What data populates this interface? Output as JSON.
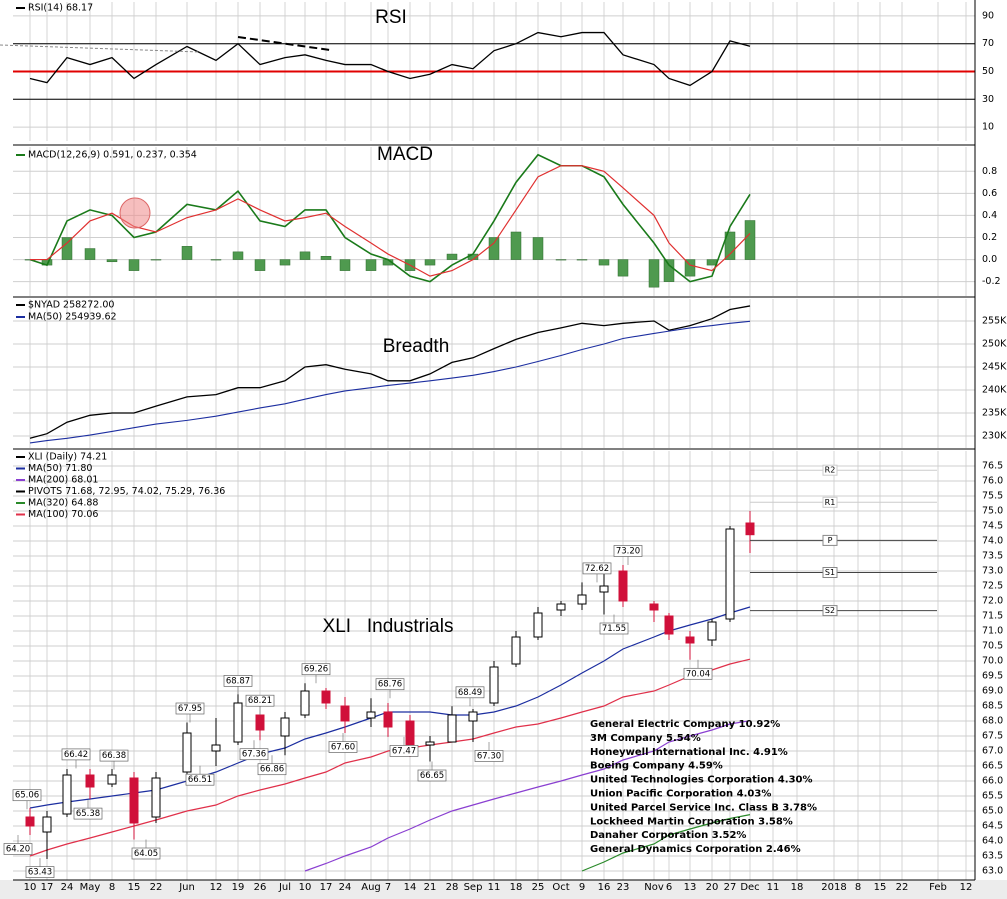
{
  "chart_data": [
    {
      "type": "line",
      "title": "RSI",
      "ylim": [
        0,
        100
      ],
      "yticks": [
        10,
        30,
        50,
        70,
        90
      ],
      "reference_lines": [
        {
          "value": 70,
          "color": "#000000"
        },
        {
          "value": 30,
          "color": "#000000"
        },
        {
          "value": 50,
          "color": "#e00000"
        }
      ],
      "series": [
        {
          "name": "RSI(14) 68.17",
          "color": "#000000",
          "values": [
            45,
            42,
            60,
            55,
            60,
            45,
            55,
            68,
            58,
            70,
            55,
            60,
            62,
            58,
            55,
            55,
            50,
            45,
            48,
            55,
            52,
            65,
            70,
            78,
            75,
            78,
            78,
            62,
            55,
            45,
            40,
            50,
            72,
            68.17,
            null,
            null,
            null,
            null,
            null,
            null,
            null,
            null
          ]
        }
      ]
    },
    {
      "type": "macd",
      "title": "MACD",
      "ylim": [
        -0.33,
        1.02
      ],
      "yticks": [
        -0.2,
        {
          "value": 0,
          "label": "0.0"
        },
        0.2,
        0.4,
        0.6,
        0.8
      ],
      "series": [
        {
          "name": "MACD(12,26,9) 0.591, 0.237, 0.354",
          "color": "#1a7a1a",
          "values": [
            0.0,
            -0.05,
            0.35,
            0.45,
            0.4,
            0.2,
            0.25,
            0.5,
            0.45,
            0.62,
            0.35,
            0.3,
            0.45,
            0.45,
            0.2,
            0.05,
            0.0,
            -0.15,
            -0.2,
            -0.05,
            0.05,
            0.35,
            0.7,
            0.95,
            0.85,
            0.85,
            0.75,
            0.5,
            0.15,
            -0.05,
            -0.2,
            -0.15,
            0.3,
            0.591,
            null,
            null,
            null,
            null,
            null,
            null,
            null,
            null
          ]
        },
        {
          "color": "#e03030",
          "values": [
            0.0,
            0.0,
            0.15,
            0.35,
            0.42,
            0.3,
            0.25,
            0.38,
            0.45,
            0.55,
            0.45,
            0.35,
            0.38,
            0.42,
            0.3,
            0.15,
            0.05,
            -0.05,
            -0.15,
            -0.1,
            0.0,
            0.15,
            0.45,
            0.75,
            0.85,
            0.85,
            0.8,
            0.65,
            0.4,
            0.15,
            -0.05,
            -0.1,
            0.05,
            0.237,
            null,
            null,
            null,
            null,
            null,
            null,
            null,
            null
          ]
        },
        {
          "kind": "bar",
          "color": "#4f9a4f",
          "values": [
            0,
            -0.05,
            0.2,
            0.1,
            -0.02,
            -0.1,
            0,
            0.12,
            0,
            0.07,
            -0.1,
            -0.05,
            0.07,
            0.03,
            -0.1,
            -0.1,
            -0.05,
            -0.1,
            -0.05,
            0.05,
            0.05,
            0.2,
            0.25,
            0.2,
            0,
            0,
            -0.05,
            -0.15,
            -0.25,
            -0.2,
            -0.15,
            -0.05,
            0.25,
            0.354,
            null,
            null,
            null,
            null,
            null,
            null,
            null,
            null
          ]
        }
      ]
    },
    {
      "type": "line",
      "title": "Breadth",
      "ylim": [
        227391,
        259783
      ],
      "yticks": [
        {
          "value": 230000,
          "label": "230K"
        },
        {
          "value": 235000,
          "label": "235K"
        },
        {
          "value": 240000,
          "label": "240K"
        },
        {
          "value": 245000,
          "label": "245K"
        },
        {
          "value": 250000,
          "label": "250K"
        },
        {
          "value": 255000,
          "label": "255K"
        }
      ],
      "series": [
        {
          "name": "$NYAD 258272.00",
          "color": "#000000",
          "values": [
            229500,
            230500,
            233000,
            234500,
            235000,
            235000,
            236500,
            238500,
            239000,
            240500,
            240500,
            242000,
            245000,
            245500,
            244500,
            243500,
            242000,
            242000,
            243500,
            246000,
            247000,
            249000,
            251000,
            252500,
            253500,
            254500,
            254000,
            254500,
            255000,
            253000,
            254000,
            255500,
            257500,
            258272,
            null,
            null,
            null,
            null,
            null,
            null,
            null,
            null
          ]
        },
        {
          "name": "MA(50) 254939.62",
          "color": "#1c2ea0",
          "values": [
            228500,
            229000,
            229500,
            230200,
            231000,
            231800,
            232600,
            233400,
            234300,
            235200,
            236100,
            237000,
            238000,
            239000,
            239800,
            240500,
            241000,
            241500,
            242000,
            242600,
            243200,
            244000,
            245000,
            246200,
            247500,
            248800,
            250000,
            251200,
            252300,
            252800,
            253500,
            254000,
            254500,
            254939.62,
            null,
            null,
            null,
            null,
            null,
            null,
            null,
            null
          ]
        }
      ]
    },
    {
      "type": "candlestick",
      "title": "XLI   Industrials",
      "name": "XLI (Daily) 74.21",
      "up_color": "#000000",
      "down_color": "#d0103a",
      "categories": [
        "10",
        "17",
        "24",
        "May",
        "8",
        "15",
        "22",
        "Jun",
        "12",
        "19",
        "26",
        "Jul",
        "10",
        "17",
        "24",
        "Aug",
        "7",
        "14",
        "21",
        "28",
        "Sep",
        "11",
        "18",
        "25",
        "Oct",
        "9",
        "16",
        "23",
        "Nov",
        "6",
        "13",
        "20",
        "27",
        "Dec",
        "11",
        "18",
        "2018",
        "8",
        "15",
        "22",
        "Feb",
        "12"
      ],
      "open": [
        64.8,
        64.3,
        64.9,
        66.2,
        65.9,
        66.1,
        64.8,
        66.3,
        67.0,
        67.3,
        68.2,
        67.5,
        68.2,
        69.0,
        68.5,
        68.1,
        68.3,
        68.0,
        67.2,
        67.3,
        68.0,
        68.6,
        69.9,
        70.8,
        71.7,
        71.9,
        72.3,
        73.0,
        71.9,
        71.5,
        70.8,
        70.7,
        71.4,
        74.6,
        null,
        null,
        null,
        null,
        null,
        null,
        null,
        null
      ],
      "high": [
        65.1,
        65.0,
        66.4,
        66.4,
        66.4,
        66.3,
        66.3,
        67.95,
        68.1,
        68.9,
        68.2,
        68.3,
        69.26,
        69.1,
        68.8,
        68.76,
        68.6,
        68.2,
        67.5,
        68.49,
        68.4,
        70.0,
        71.0,
        71.8,
        72.0,
        72.62,
        73.2,
        73.2,
        72.0,
        71.6,
        71.0,
        71.4,
        74.5,
        75.0,
        null,
        null,
        null,
        null,
        null,
        null,
        null,
        null
      ],
      "low": [
        64.2,
        63.4,
        64.8,
        65.4,
        65.8,
        64.05,
        64.6,
        66.2,
        66.5,
        67.2,
        67.36,
        66.86,
        68.1,
        68.4,
        67.6,
        67.8,
        67.47,
        66.8,
        66.65,
        67.3,
        67.3,
        68.5,
        69.8,
        70.7,
        71.5,
        71.7,
        71.55,
        71.8,
        71.3,
        70.7,
        70.04,
        70.5,
        71.3,
        73.6,
        null,
        null,
        null,
        null,
        null,
        null,
        null,
        null
      ],
      "close": [
        64.5,
        64.8,
        66.2,
        65.8,
        66.2,
        64.6,
        66.1,
        67.6,
        67.2,
        68.6,
        67.7,
        68.1,
        69.0,
        68.6,
        68.0,
        68.3,
        67.8,
        67.2,
        67.3,
        68.2,
        68.3,
        69.8,
        70.8,
        71.6,
        71.9,
        72.2,
        72.5,
        72.0,
        71.7,
        70.9,
        70.6,
        71.3,
        74.4,
        74.21,
        null,
        null,
        null,
        null,
        null,
        null,
        null,
        null
      ],
      "ylim": [
        62.7,
        77.0
      ],
      "yticks": [
        {
          "value": 63,
          "label": "63.0"
        },
        63.5,
        {
          "value": 64,
          "label": "64.0"
        },
        64.5,
        {
          "value": 65,
          "label": "65.0"
        },
        65.5,
        {
          "value": 66,
          "label": "66.0"
        },
        66.5,
        {
          "value": 67,
          "label": "67.0"
        },
        67.5,
        {
          "value": 68,
          "label": "68.0"
        },
        68.5,
        {
          "value": 69,
          "label": "69.0"
        },
        69.5,
        {
          "value": 70,
          "label": "70.0"
        },
        70.5,
        {
          "value": 71,
          "label": "71.0"
        },
        71.5,
        {
          "value": 72,
          "label": "72.0"
        },
        72.5,
        {
          "value": 73,
          "label": "73.0"
        },
        73.5,
        {
          "value": 74,
          "label": "74.0"
        },
        74.5,
        {
          "value": 75,
          "label": "75.0"
        },
        75.5,
        {
          "value": 76,
          "label": "76.0"
        },
        76.5
      ],
      "series": [
        {
          "name": "MA(50) 71.80",
          "color": "#1c2ea0",
          "values": [
            65.1,
            65.2,
            65.3,
            65.4,
            65.5,
            65.6,
            65.7,
            66.0,
            66.3,
            66.6,
            66.9,
            67.1,
            67.4,
            67.6,
            67.8,
            68.1,
            68.3,
            68.3,
            68.3,
            68.2,
            68.2,
            68.3,
            68.5,
            68.8,
            69.2,
            69.6,
            70.0,
            70.4,
            70.8,
            71.0,
            71.2,
            71.4,
            71.6,
            71.8,
            null,
            null,
            null,
            null,
            null,
            null,
            null,
            null
          ]
        },
        {
          "name": "MA(200) 68.01",
          "color": "#8a3fd1",
          "values": [
            null,
            null,
            null,
            null,
            null,
            null,
            null,
            null,
            null,
            null,
            null,
            null,
            63.0,
            63.25,
            63.5,
            63.8,
            64.1,
            64.4,
            64.7,
            65.0,
            65.2,
            65.4,
            65.6,
            65.8,
            66.0,
            66.2,
            66.4,
            66.7,
            67.0,
            67.3,
            67.5,
            67.7,
            67.9,
            68.01,
            null,
            null,
            null,
            null,
            null,
            null,
            null,
            null
          ]
        },
        {
          "name": "MA(320) 64.88",
          "color": "#2a8a2a",
          "values": [
            null,
            null,
            null,
            null,
            null,
            null,
            null,
            null,
            null,
            null,
            null,
            null,
            null,
            null,
            null,
            null,
            null,
            null,
            null,
            null,
            null,
            null,
            null,
            null,
            null,
            63.0,
            63.3,
            63.6,
            63.9,
            64.2,
            64.4,
            64.6,
            64.75,
            64.88,
            null,
            null,
            null,
            null,
            null,
            null,
            null,
            null
          ]
        },
        {
          "name": "MA(100) 70.06",
          "color": "#e0304a",
          "values": [
            63.5,
            63.7,
            63.9,
            64.1,
            64.3,
            64.5,
            64.7,
            65.0,
            65.2,
            65.5,
            65.7,
            65.9,
            66.1,
            66.3,
            66.6,
            66.8,
            67.0,
            67.1,
            67.2,
            67.3,
            67.4,
            67.6,
            67.8,
            67.9,
            68.1,
            68.3,
            68.5,
            68.8,
            69.0,
            69.2,
            69.5,
            69.7,
            69.9,
            70.06,
            null,
            null,
            null,
            null,
            null,
            null,
            null,
            null
          ]
        }
      ],
      "pivots_name": "PIVOTS 71.68, 72.95, 74.02, 75.29, 76.36",
      "pivots": [
        {
          "label": "S2",
          "value": 71.68
        },
        {
          "label": "S1",
          "value": 72.95
        },
        {
          "label": "P",
          "value": 74.02
        },
        {
          "label": "R1",
          "value": 75.29
        },
        {
          "label": "R2",
          "value": 76.36
        }
      ],
      "price_labels": [
        65.06,
        {
          "value": 64.2,
          "label": "64.20"
        },
        63.43,
        66.42,
        65.38,
        66.38,
        64.05,
        67.95,
        66.51,
        68.87,
        68.21,
        67.36,
        66.86,
        69.26,
        {
          "value": 67.6,
          "label": "67.60"
        },
        68.76,
        67.47,
        66.65,
        68.49,
        {
          "value": 67.3,
          "label": "67.30"
        },
        72.62,
        {
          "value": 73.2,
          "label": "73.20"
        },
        71.55,
        70.04
      ],
      "holdings": [
        "General Electric Company 10.92%",
        "3M Company 5.54%",
        "Honeywell International Inc. 4.91%",
        "Boeing Company 4.59%",
        "United Technologies Corporation 4.30%",
        "Union Pacific Corporation 4.03%",
        "United Parcel Service Inc. Class B 3.78%",
        "Lockheed Martin Corporation 3.58%",
        "Danaher Corporation 3.52%",
        "General Dynamics Corporation 2.46%"
      ]
    }
  ]
}
